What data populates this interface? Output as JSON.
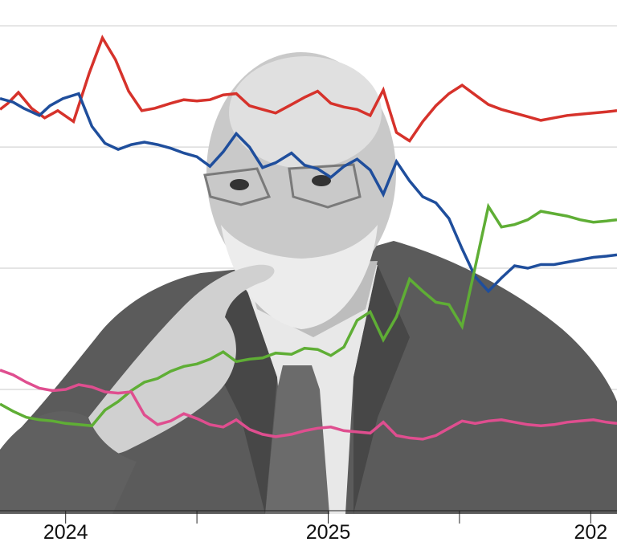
{
  "chart_data": {
    "type": "line",
    "title": "",
    "xlabel": "",
    "ylabel": "",
    "grid": true,
    "x_ticks": [
      {
        "label": "2024",
        "x": 0.0
      },
      {
        "label": "",
        "x": 0.5
      },
      {
        "label": "2025",
        "x": 1.0
      },
      {
        "label": "",
        "x": 1.5
      },
      {
        "label": "202",
        "x": 2.0
      }
    ],
    "xlim": [
      -0.25,
      2.1
    ],
    "ylim": [
      0,
      41
    ],
    "series": [
      {
        "color": "#d6322b",
        "x": [
          -0.25,
          -0.22,
          -0.18,
          -0.13,
          -0.08,
          -0.03,
          0.03,
          0.09,
          0.14,
          0.19,
          0.24,
          0.29,
          0.34,
          0.4,
          0.45,
          0.5,
          0.55,
          0.6,
          0.65,
          0.7,
          0.75,
          0.8,
          0.86,
          0.91,
          0.96,
          1.01,
          1.06,
          1.11,
          1.16,
          1.21,
          1.26,
          1.31,
          1.36,
          1.41,
          1.46,
          1.51,
          1.56,
          1.61,
          1.66,
          1.71,
          1.76,
          1.81,
          1.86,
          1.91,
          1.96,
          2.01,
          2.06,
          2.1
        ],
        "y": [
          33.1,
          33.6,
          34.5,
          33.2,
          32.4,
          33.0,
          32.1,
          36.1,
          39.0,
          37.2,
          34.6,
          33.0,
          33.2,
          33.6,
          33.9,
          33.8,
          33.9,
          34.3,
          34.4,
          33.4,
          33.1,
          32.8,
          33.5,
          34.1,
          34.6,
          33.6,
          33.3,
          33.1,
          32.6,
          34.7,
          31.2,
          30.5,
          32.1,
          33.4,
          34.4,
          35.1,
          34.3,
          33.5,
          33.1,
          32.8,
          32.5,
          32.2,
          32.4,
          32.6,
          32.7,
          32.8,
          32.9,
          33.0
        ]
      },
      {
        "color": "#1f4e9c",
        "x": [
          -0.25,
          -0.2,
          -0.16,
          -0.1,
          -0.06,
          -0.01,
          0.05,
          0.1,
          0.15,
          0.2,
          0.25,
          0.3,
          0.35,
          0.4,
          0.45,
          0.5,
          0.55,
          0.6,
          0.65,
          0.7,
          0.75,
          0.8,
          0.86,
          0.91,
          0.96,
          1.01,
          1.06,
          1.11,
          1.16,
          1.21,
          1.26,
          1.31,
          1.36,
          1.41,
          1.46,
          1.51,
          1.56,
          1.61,
          1.66,
          1.71,
          1.76,
          1.81,
          1.86,
          1.91,
          1.96,
          2.01,
          2.06,
          2.1
        ],
        "y": [
          34.0,
          33.7,
          33.2,
          32.6,
          33.4,
          34.0,
          34.4,
          31.7,
          30.3,
          29.8,
          30.2,
          30.4,
          30.2,
          29.9,
          29.5,
          29.2,
          28.4,
          29.6,
          31.1,
          30.0,
          28.3,
          28.7,
          29.5,
          28.5,
          28.2,
          27.5,
          28.4,
          29.0,
          28.1,
          26.1,
          28.8,
          27.2,
          25.9,
          25.4,
          24.1,
          21.6,
          19.3,
          18.1,
          19.2,
          20.2,
          20.0,
          20.3,
          20.3,
          20.5,
          20.7,
          20.9,
          21.0,
          21.1
        ]
      },
      {
        "color": "#5fae35",
        "x": [
          -0.25,
          -0.2,
          -0.15,
          -0.1,
          -0.05,
          0.0,
          0.05,
          0.1,
          0.15,
          0.2,
          0.25,
          0.3,
          0.35,
          0.4,
          0.45,
          0.5,
          0.55,
          0.6,
          0.65,
          0.7,
          0.75,
          0.8,
          0.86,
          0.91,
          0.96,
          1.01,
          1.06,
          1.11,
          1.16,
          1.21,
          1.26,
          1.31,
          1.36,
          1.41,
          1.46,
          1.51,
          1.56,
          1.61,
          1.66,
          1.71,
          1.76,
          1.81,
          1.86,
          1.91,
          1.96,
          2.01,
          2.06,
          2.1
        ],
        "y": [
          8.8,
          8.2,
          7.7,
          7.5,
          7.4,
          7.2,
          7.1,
          7.0,
          8.3,
          9.0,
          9.9,
          10.6,
          10.9,
          11.5,
          11.9,
          12.1,
          12.5,
          13.1,
          12.3,
          12.5,
          12.6,
          13.0,
          12.9,
          13.4,
          13.3,
          12.8,
          13.5,
          15.7,
          16.4,
          14.1,
          16.0,
          19.1,
          18.1,
          17.2,
          17.0,
          15.2,
          20.1,
          25.1,
          23.4,
          23.6,
          24.0,
          24.7,
          24.5,
          24.3,
          24.0,
          23.8,
          23.9,
          24.0
        ]
      },
      {
        "color": "#df4e8f",
        "x": [
          -0.25,
          -0.2,
          -0.15,
          -0.1,
          -0.05,
          0.0,
          0.05,
          0.1,
          0.15,
          0.2,
          0.25,
          0.3,
          0.35,
          0.4,
          0.45,
          0.5,
          0.55,
          0.6,
          0.65,
          0.7,
          0.75,
          0.8,
          0.86,
          0.91,
          0.96,
          1.01,
          1.06,
          1.11,
          1.16,
          1.21,
          1.26,
          1.31,
          1.36,
          1.41,
          1.46,
          1.51,
          1.56,
          1.61,
          1.66,
          1.71,
          1.76,
          1.81,
          1.86,
          1.91,
          1.96,
          2.01,
          2.06,
          2.1
        ],
        "y": [
          11.6,
          11.2,
          10.6,
          10.1,
          9.9,
          10.0,
          10.4,
          10.2,
          9.8,
          9.7,
          9.8,
          7.9,
          7.1,
          7.4,
          8.0,
          7.6,
          7.1,
          6.9,
          7.5,
          6.7,
          6.3,
          6.1,
          6.3,
          6.6,
          6.8,
          6.9,
          6.6,
          6.5,
          6.4,
          7.3,
          6.2,
          6.0,
          5.9,
          6.2,
          6.8,
          7.4,
          7.2,
          7.4,
          7.5,
          7.3,
          7.1,
          7.0,
          7.1,
          7.3,
          7.4,
          7.5,
          7.3,
          7.2
        ]
      }
    ]
  },
  "colors": {
    "grid": "#dcdcdc",
    "axis": "#222222",
    "pp": "#d6322b",
    "psoe": "#1f4e9c",
    "vox": "#5fae35",
    "sumar": "#df4e8f"
  }
}
